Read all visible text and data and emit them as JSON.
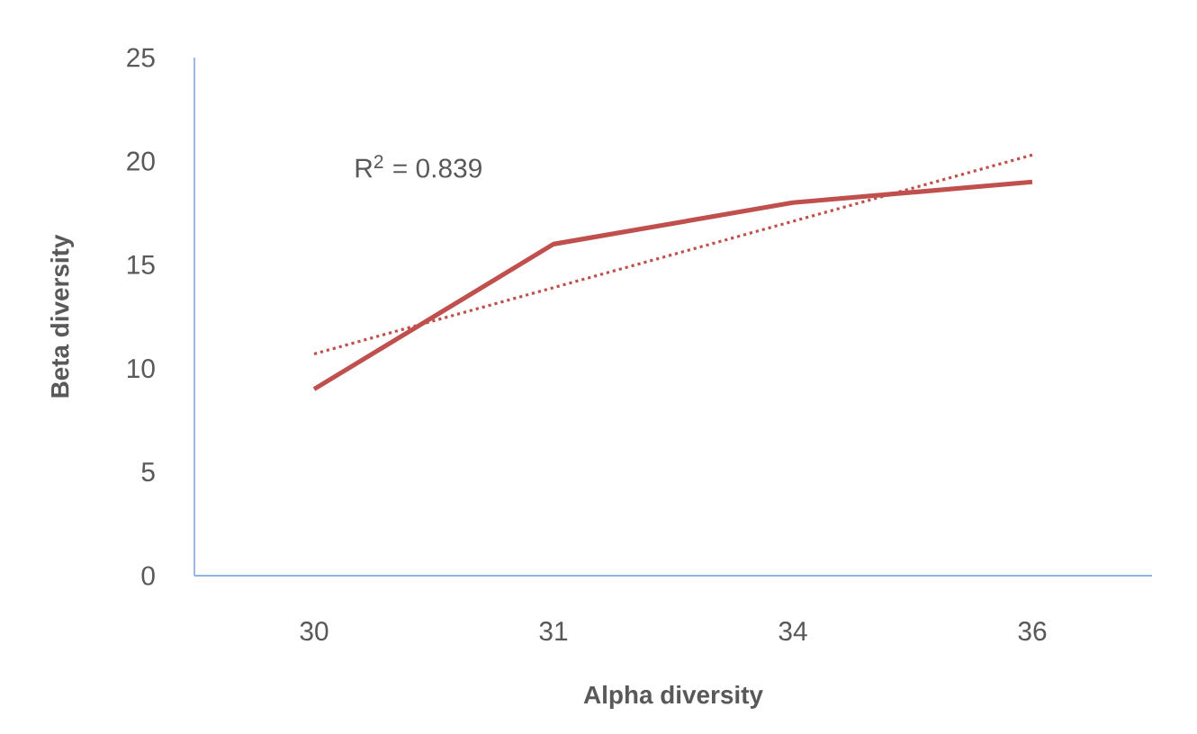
{
  "chart_data": {
    "type": "line",
    "xlabel": "Alpha diversity",
    "ylabel": "Beta diversity",
    "categories": [
      "30",
      "31",
      "34",
      "36"
    ],
    "series": [
      {
        "color": "#c0504d",
        "values": [
          9,
          16,
          18,
          19
        ],
        "line_style": "solid"
      },
      {
        "color": "#c0504d",
        "values": [
          10.7,
          13.9,
          17.1,
          20.3
        ],
        "line_style": "dotted"
      }
    ],
    "ylim": [
      0,
      25
    ],
    "yticks": [
      0,
      5,
      10,
      15,
      20,
      25
    ],
    "annotations": [
      "R$^{2}$ = 0.839"
    ],
    "grid": false,
    "marker": "none"
  }
}
